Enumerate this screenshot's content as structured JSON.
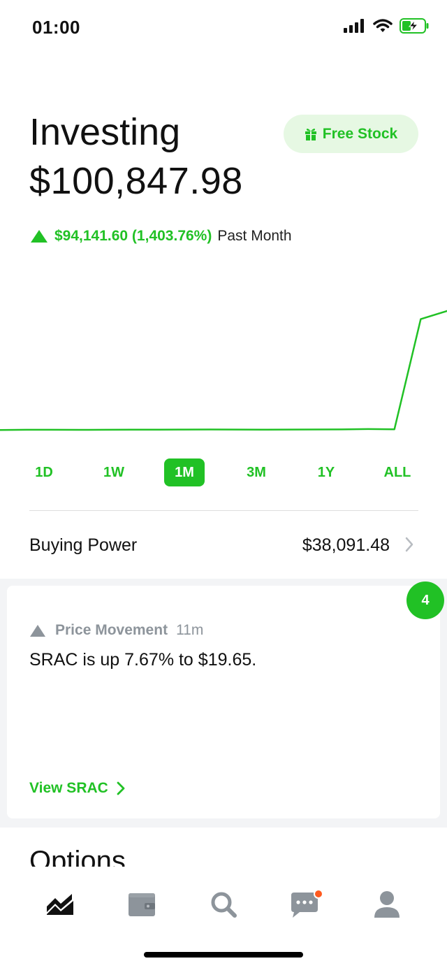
{
  "status_bar": {
    "time": "01:00"
  },
  "header": {
    "title": "Investing",
    "portfolio_value": "$100,847.98",
    "free_stock_label": "Free Stock"
  },
  "change": {
    "value": "$94,141.60 (1,403.76%)",
    "period": "Past Month"
  },
  "chart_data": {
    "type": "line",
    "series": [
      {
        "values": [
          6706,
          6750,
          6745,
          6735,
          6740,
          6765,
          6770,
          6790,
          6805,
          6798,
          6760,
          6790,
          6800,
          6820,
          6900,
          6850,
          88000,
          100848
        ]
      }
    ],
    "title": "",
    "xlabel": "",
    "ylabel": "",
    "color": "#21c125"
  },
  "ranges": [
    {
      "label": "1D",
      "active": false
    },
    {
      "label": "1W",
      "active": false
    },
    {
      "label": "1M",
      "active": true
    },
    {
      "label": "3M",
      "active": false
    },
    {
      "label": "1Y",
      "active": false
    },
    {
      "label": "ALL",
      "active": false
    }
  ],
  "buying_power": {
    "label": "Buying Power",
    "value": "$38,091.48"
  },
  "card": {
    "category": "Price Movement",
    "time": "11m",
    "body": "SRAC is up 7.67% to $19.65.",
    "link": "View SRAC",
    "badge_count": "4"
  },
  "section_title": "Options",
  "nav": [
    {
      "name": "home",
      "icon": "chart-icon",
      "active": true
    },
    {
      "name": "wallet",
      "icon": "wallet-icon",
      "active": false
    },
    {
      "name": "search",
      "icon": "search-icon",
      "active": false
    },
    {
      "name": "messages",
      "icon": "chat-icon",
      "active": false,
      "notification_dot": true
    },
    {
      "name": "account",
      "icon": "person-icon",
      "active": false
    }
  ],
  "colors": {
    "accent": "#21c125",
    "accent_light": "#e6f8e3",
    "muted": "#8d949b",
    "nav_inactive": "#8d949b",
    "notification": "#ff5a1f"
  }
}
